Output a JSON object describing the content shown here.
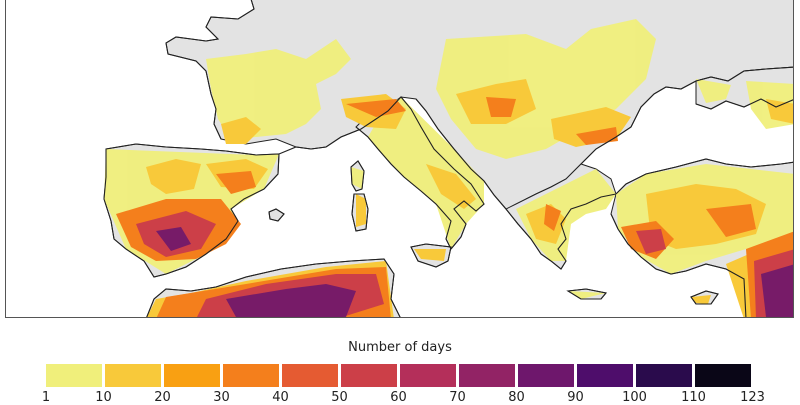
{
  "map": {
    "region": "Mediterranean / Southern Europe",
    "land_no_data_color": "#e3e3e3",
    "sea_color": "#ffffff",
    "coastline_color": "#222222"
  },
  "legend": {
    "title": "Number of days",
    "bins": [
      {
        "from": "1",
        "to": "10",
        "color": "#f0ef7b"
      },
      {
        "from": "10",
        "to": "20",
        "color": "#f8c93a"
      },
      {
        "from": "20",
        "to": "30",
        "color": "#f9a012"
      },
      {
        "from": "30",
        "to": "40",
        "color": "#f47f1c"
      },
      {
        "from": "40",
        "to": "50",
        "color": "#e55b32"
      },
      {
        "from": "50",
        "to": "60",
        "color": "#cc3f48"
      },
      {
        "from": "60",
        "to": "70",
        "color": "#b42f5a"
      },
      {
        "from": "70",
        "to": "80",
        "color": "#922365"
      },
      {
        "from": "80",
        "to": "90",
        "color": "#6e176c"
      },
      {
        "from": "90",
        "to": "100",
        "color": "#4e0d6b"
      },
      {
        "from": "100",
        "to": "110",
        "color": "#2a0b4c"
      },
      {
        "from": "110",
        "to": "123",
        "color": "#0a0617"
      }
    ],
    "ticks": [
      "1",
      "10",
      "20",
      "30",
      "40",
      "50",
      "60",
      "70",
      "80",
      "90",
      "100",
      "110",
      "123"
    ]
  }
}
